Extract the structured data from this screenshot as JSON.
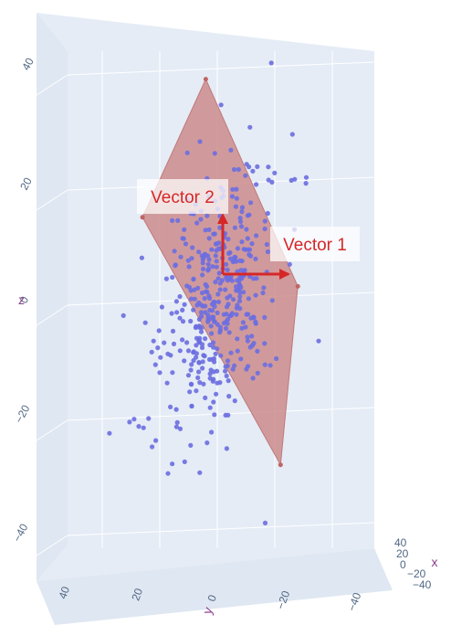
{
  "chart_data": {
    "type": "scatter3d",
    "title": "",
    "axes": {
      "x": {
        "title": "x",
        "ticks": [
          "40",
          "20",
          "0",
          "−20",
          "−40"
        ]
      },
      "y": {
        "title": "y",
        "ticks": [
          "40",
          "20",
          "0",
          "−20",
          "−40"
        ]
      },
      "z": {
        "title": "z",
        "ticks": [
          "40",
          "20",
          "0",
          "−20",
          "−40"
        ]
      }
    },
    "scene": {
      "background": "#e5ecf6",
      "grid_color": "#ffffff",
      "grid": true,
      "view": "looking down the x axis"
    },
    "point_series": {
      "color": "#6b6ee0",
      "count": 420,
      "trend": "elongated cloud along the plane, spread roughly z ∈ [−35, 42]",
      "center_y": 0,
      "center_z": 0
    },
    "plane": {
      "color": "#cd8c8c",
      "opacity": 0.85,
      "corners_yz": [
        [
          4,
          38
        ],
        [
          26,
          14
        ],
        [
          -22,
          -29
        ],
        [
          -28,
          2
        ]
      ]
    },
    "vectors": [
      {
        "label": "Vector 1",
        "color": "#d62728",
        "direction": "right"
      },
      {
        "label": "Vector 2",
        "color": "#d62728",
        "direction": "up"
      }
    ]
  }
}
